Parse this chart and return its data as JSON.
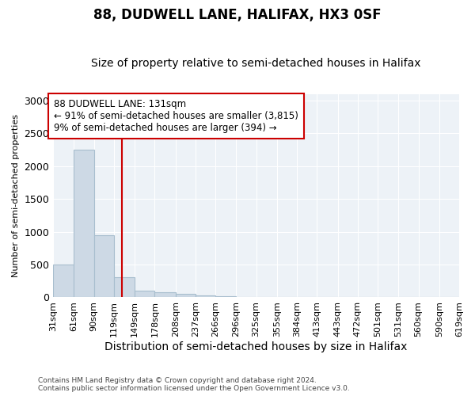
{
  "title": "88, DUDWELL LANE, HALIFAX, HX3 0SF",
  "subtitle": "Size of property relative to semi-detached houses in Halifax",
  "xlabel": "Distribution of semi-detached houses by size in Halifax",
  "ylabel": "Number of semi-detached properties",
  "footnote": "Contains HM Land Registry data © Crown copyright and database right 2024.\nContains public sector information licensed under the Open Government Licence v3.0.",
  "bar_color": "#cdd9e5",
  "bar_edge_color": "#a8bece",
  "bins": [
    31,
    61,
    90,
    119,
    149,
    178,
    208,
    237,
    266,
    296,
    325,
    355,
    384,
    413,
    443,
    472,
    501,
    531,
    560,
    590,
    619
  ],
  "bar_heights": [
    500,
    2250,
    950,
    310,
    100,
    80,
    50,
    30,
    20,
    10,
    5,
    5,
    0,
    0,
    0,
    0,
    0,
    0,
    0,
    0
  ],
  "tick_labels": [
    "31sqm",
    "61sqm",
    "90sqm",
    "119sqm",
    "149sqm",
    "178sqm",
    "208sqm",
    "237sqm",
    "266sqm",
    "296sqm",
    "325sqm",
    "355sqm",
    "384sqm",
    "413sqm",
    "443sqm",
    "472sqm",
    "501sqm",
    "531sqm",
    "560sqm",
    "590sqm",
    "619sqm"
  ],
  "vline_x": 131,
  "vline_color": "#cc0000",
  "annotation_text": "88 DUDWELL LANE: 131sqm\n← 91% of semi-detached houses are smaller (3,815)\n9% of semi-detached houses are larger (394) →",
  "annotation_box_facecolor": "#ffffff",
  "annotation_box_edgecolor": "#cc0000",
  "ylim": [
    0,
    3100
  ],
  "yticks": [
    0,
    500,
    1000,
    1500,
    2000,
    2500,
    3000
  ],
  "plot_bg_color": "#edf2f7",
  "grid_color": "#ffffff",
  "fig_bg_color": "#ffffff",
  "title_fontsize": 12,
  "subtitle_fontsize": 10,
  "xlabel_fontsize": 10,
  "ylabel_fontsize": 8,
  "tick_fontsize": 8,
  "annotation_fontsize": 8.5
}
